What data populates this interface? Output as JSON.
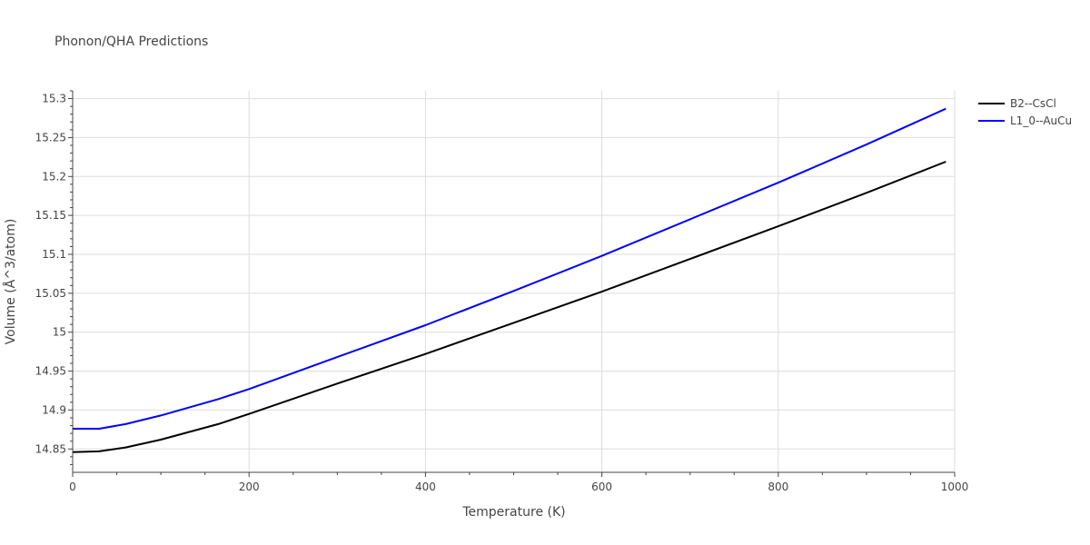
{
  "chart_data": {
    "type": "line",
    "title": "Phonon/QHA Predictions",
    "xlabel": "Temperature (K)",
    "ylabel": "Volume (Å^3/atom)",
    "xlim": [
      0,
      1000
    ],
    "ylim": [
      14.82,
      15.31
    ],
    "x_ticks": [
      0,
      200,
      400,
      600,
      800,
      1000
    ],
    "x_tick_labels": [
      "0",
      "200",
      "400",
      "600",
      "800",
      "1000"
    ],
    "y_ticks": [
      14.85,
      14.9,
      14.95,
      15.0,
      15.05,
      15.1,
      15.15,
      15.2,
      15.25,
      15.3
    ],
    "y_tick_labels": [
      "14.85",
      "14.9",
      "14.95",
      "15",
      "15.05",
      "15.1",
      "15.15",
      "15.2",
      "15.25",
      "15.3"
    ],
    "grid": true,
    "legend_position": "top-right",
    "series": [
      {
        "name": "B2--CsCl",
        "color": "#000000",
        "x": [
          0,
          30,
          60,
          100,
          165,
          200,
          300,
          400,
          500,
          600,
          700,
          800,
          900,
          990
        ],
        "y": [
          14.846,
          14.847,
          14.852,
          14.862,
          14.882,
          14.895,
          14.934,
          14.972,
          15.012,
          15.052,
          15.094,
          15.136,
          15.179,
          15.219
        ]
      },
      {
        "name": "L1_0--AuCu",
        "color": "#0000ff",
        "x": [
          0,
          30,
          60,
          100,
          165,
          200,
          300,
          400,
          500,
          600,
          700,
          800,
          900,
          990
        ],
        "y": [
          14.876,
          14.876,
          14.882,
          14.893,
          14.914,
          14.927,
          14.968,
          15.009,
          15.053,
          15.098,
          15.145,
          15.192,
          15.241,
          15.287
        ]
      }
    ]
  }
}
